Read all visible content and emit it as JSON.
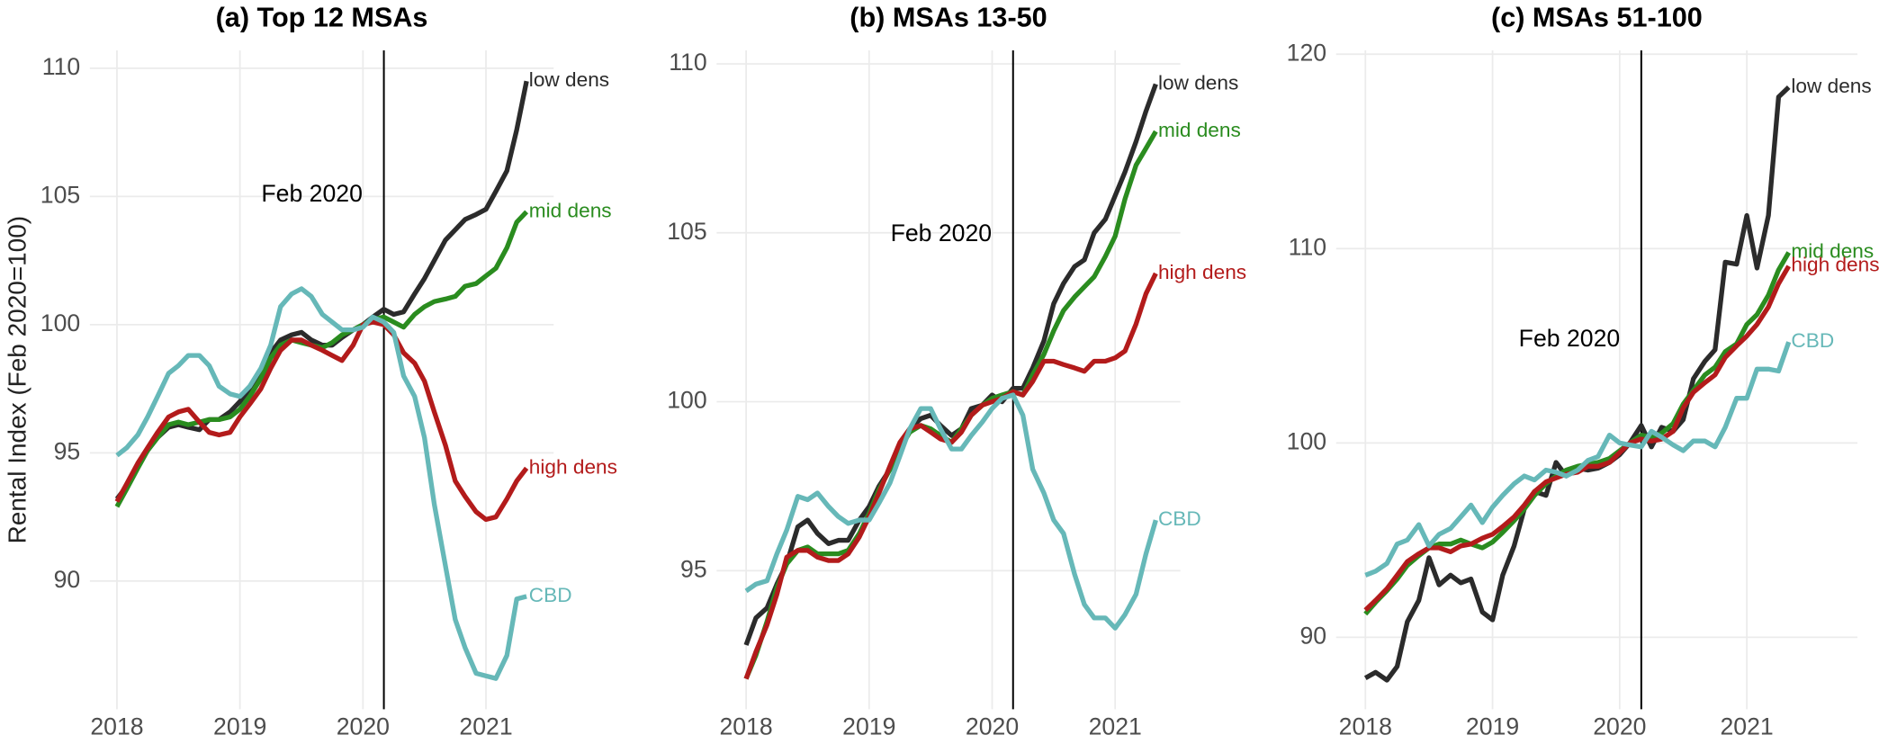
{
  "chart_data": [
    {
      "type": "line",
      "title": "(a) Top 12 MSAs",
      "ylabel": "Rental Index (Feb 2020=100)",
      "x": [
        2018,
        2018.08,
        2018.17,
        2018.25,
        2018.33,
        2018.42,
        2018.5,
        2018.58,
        2018.67,
        2018.75,
        2018.83,
        2018.92,
        2019,
        2019.08,
        2019.17,
        2019.25,
        2019.33,
        2019.42,
        2019.5,
        2019.58,
        2019.67,
        2019.75,
        2019.83,
        2019.92,
        2020,
        2020.08,
        2020.17,
        2020.25,
        2020.33,
        2020.42,
        2020.5,
        2020.58,
        2020.67,
        2020.75,
        2020.83,
        2020.92,
        2021,
        2021.08,
        2021.17,
        2021.25,
        2021.33
      ],
      "xlim": [
        2017.78,
        2021.55
      ],
      "xticks": [
        2018,
        2019,
        2020,
        2021
      ],
      "ylim": [
        85,
        110.7
      ],
      "yticks": [
        90,
        95,
        100,
        105,
        110
      ],
      "grid": true,
      "vline": 2020.17,
      "annotation": "Feb 2020",
      "series": [
        {
          "name": "low dens",
          "color": "#2b2b2b",
          "values": [
            93.2,
            93.7,
            94.5,
            95.1,
            95.6,
            96.0,
            96.1,
            96.0,
            95.9,
            96.3,
            96.3,
            96.6,
            97.0,
            97.5,
            98.2,
            98.9,
            99.4,
            99.6,
            99.7,
            99.4,
            99.2,
            99.2,
            99.5,
            99.8,
            100.0,
            100.3,
            100.6,
            100.4,
            100.5,
            101.2,
            101.8,
            102.5,
            103.3,
            103.7,
            104.1,
            104.3,
            104.5,
            105.2,
            106.0,
            107.6,
            109.5
          ]
        },
        {
          "name": "mid dens",
          "color": "#2a8c1f",
          "values": [
            92.9,
            93.6,
            94.4,
            95.1,
            95.6,
            96.1,
            96.2,
            96.1,
            96.2,
            96.3,
            96.3,
            96.4,
            96.7,
            97.2,
            97.9,
            98.7,
            99.2,
            99.4,
            99.3,
            99.2,
            99.1,
            99.3,
            99.6,
            99.8,
            100.0,
            100.2,
            100.3,
            100.1,
            99.9,
            100.4,
            100.7,
            100.9,
            101.0,
            101.1,
            101.5,
            101.6,
            101.9,
            102.2,
            103.0,
            104.0,
            104.4
          ]
        },
        {
          "name": "high dens",
          "color": "#b31b1b",
          "values": [
            93.1,
            93.8,
            94.6,
            95.2,
            95.8,
            96.4,
            96.6,
            96.7,
            96.2,
            95.8,
            95.7,
            95.8,
            96.4,
            96.9,
            97.5,
            98.3,
            99.0,
            99.4,
            99.4,
            99.2,
            99.0,
            98.8,
            98.6,
            99.2,
            100.0,
            100.1,
            100.0,
            99.6,
            98.9,
            98.5,
            97.8,
            96.6,
            95.3,
            93.9,
            93.3,
            92.7,
            92.4,
            92.5,
            93.2,
            93.9,
            94.4
          ]
        },
        {
          "name": "CBD",
          "color": "#66b8b8",
          "values": [
            94.9,
            95.2,
            95.7,
            96.4,
            97.2,
            98.1,
            98.4,
            98.8,
            98.8,
            98.4,
            97.6,
            97.3,
            97.2,
            97.6,
            98.3,
            99.2,
            100.7,
            101.2,
            101.4,
            101.1,
            100.4,
            100.1,
            99.8,
            99.8,
            99.9,
            100.3,
            100.1,
            99.7,
            98.0,
            97.2,
            95.6,
            93.0,
            90.6,
            88.5,
            87.4,
            86.4,
            86.3,
            86.2,
            87.1,
            89.3,
            89.4
          ]
        }
      ]
    },
    {
      "type": "line",
      "title": "(b) MSAs 13-50",
      "x": [
        2018,
        2018.08,
        2018.17,
        2018.25,
        2018.33,
        2018.42,
        2018.5,
        2018.58,
        2018.67,
        2018.75,
        2018.83,
        2018.92,
        2019,
        2019.08,
        2019.17,
        2019.25,
        2019.33,
        2019.42,
        2019.5,
        2019.58,
        2019.67,
        2019.75,
        2019.83,
        2019.92,
        2020,
        2020.08,
        2020.17,
        2020.25,
        2020.33,
        2020.42,
        2020.5,
        2020.58,
        2020.67,
        2020.75,
        2020.83,
        2020.92,
        2021,
        2021.08,
        2021.17,
        2021.25,
        2021.33
      ],
      "xlim": [
        2017.76,
        2021.53
      ],
      "xticks": [
        2018,
        2019,
        2020,
        2021
      ],
      "ylim": [
        90.9,
        110.4
      ],
      "yticks": [
        95,
        100,
        105,
        110
      ],
      "grid": true,
      "vline": 2020.17,
      "annotation": "Feb 2020",
      "series": [
        {
          "name": "low dens",
          "color": "#2b2b2b",
          "values": [
            92.8,
            93.6,
            93.9,
            94.6,
            95.2,
            96.3,
            96.5,
            96.1,
            95.8,
            95.9,
            95.9,
            96.5,
            96.9,
            97.5,
            98.0,
            98.6,
            99.2,
            99.5,
            99.6,
            99.3,
            99.0,
            99.2,
            99.8,
            99.9,
            100.2,
            100.0,
            100.4,
            100.4,
            101.0,
            101.8,
            102.9,
            103.5,
            104.0,
            104.2,
            105.0,
            105.4,
            106.1,
            106.8,
            107.7,
            108.6,
            109.4
          ]
        },
        {
          "name": "mid dens",
          "color": "#2a8c1f",
          "values": [
            91.8,
            92.5,
            93.5,
            94.5,
            95.2,
            95.6,
            95.7,
            95.5,
            95.5,
            95.5,
            95.6,
            96.1,
            96.7,
            97.4,
            98.0,
            98.6,
            99.1,
            99.3,
            99.2,
            99.0,
            98.8,
            99.2,
            99.6,
            99.9,
            100.1,
            100.2,
            100.3,
            100.2,
            100.8,
            101.4,
            102.1,
            102.7,
            103.1,
            103.4,
            103.7,
            104.3,
            104.9,
            106.0,
            107.0,
            107.5,
            108.0
          ]
        },
        {
          "name": "high dens",
          "color": "#b31b1b",
          "values": [
            91.8,
            92.6,
            93.4,
            94.3,
            95.4,
            95.6,
            95.6,
            95.4,
            95.3,
            95.3,
            95.5,
            96.0,
            96.6,
            97.3,
            98.1,
            98.8,
            99.2,
            99.3,
            99.1,
            98.9,
            98.8,
            99.1,
            99.6,
            99.9,
            100.0,
            100.1,
            100.3,
            100.2,
            100.6,
            101.2,
            101.2,
            101.1,
            101.0,
            100.9,
            101.2,
            101.2,
            101.3,
            101.5,
            102.3,
            103.2,
            103.8
          ]
        },
        {
          "name": "CBD",
          "color": "#66b8b8",
          "values": [
            94.4,
            94.6,
            94.7,
            95.5,
            96.2,
            97.2,
            97.1,
            97.3,
            96.9,
            96.6,
            96.4,
            96.5,
            96.5,
            97.0,
            97.6,
            98.4,
            99.2,
            99.8,
            99.8,
            99.2,
            98.6,
            98.6,
            99.0,
            99.4,
            99.8,
            100.1,
            100.2,
            99.6,
            98.0,
            97.3,
            96.5,
            96.1,
            94.9,
            94.0,
            93.6,
            93.6,
            93.3,
            93.7,
            94.3,
            95.5,
            96.5
          ]
        }
      ]
    },
    {
      "type": "line",
      "title": "(c) MSAs 51-100",
      "x": [
        2018,
        2018.08,
        2018.17,
        2018.25,
        2018.33,
        2018.42,
        2018.5,
        2018.58,
        2018.67,
        2018.75,
        2018.83,
        2018.92,
        2019,
        2019.08,
        2019.17,
        2019.25,
        2019.33,
        2019.42,
        2019.5,
        2019.58,
        2019.67,
        2019.75,
        2019.83,
        2019.92,
        2020,
        2020.08,
        2020.17,
        2020.25,
        2020.33,
        2020.42,
        2020.5,
        2020.58,
        2020.67,
        2020.75,
        2020.83,
        2020.92,
        2021,
        2021.08,
        2021.17,
        2021.25,
        2021.33
      ],
      "xlim": [
        2017.77,
        2021.87
      ],
      "xticks": [
        2018,
        2019,
        2020,
        2021
      ],
      "ylim": [
        86.3,
        120.2
      ],
      "yticks": [
        90,
        100,
        110,
        120
      ],
      "grid": true,
      "vline": 2020.17,
      "annotation": "Feb 2020",
      "series": [
        {
          "name": "low dens",
          "color": "#2b2b2b",
          "values": [
            87.9,
            88.2,
            87.8,
            88.5,
            90.8,
            91.9,
            94.1,
            92.7,
            93.2,
            92.8,
            93.0,
            91.3,
            90.9,
            93.2,
            94.7,
            96.6,
            97.5,
            97.3,
            99.0,
            98.3,
            98.7,
            98.6,
            98.7,
            99.0,
            99.4,
            100.0,
            100.9,
            99.8,
            100.8,
            100.6,
            101.2,
            103.3,
            104.2,
            104.8,
            109.3,
            109.2,
            111.7,
            109.0,
            111.7,
            117.8,
            118.3
          ]
        },
        {
          "name": "mid dens",
          "color": "#2a8c1f",
          "values": [
            91.2,
            91.8,
            92.4,
            93.0,
            93.7,
            94.2,
            94.6,
            94.8,
            94.8,
            95.0,
            94.8,
            94.6,
            94.9,
            95.4,
            96.0,
            96.6,
            97.3,
            97.9,
            98.3,
            98.6,
            98.8,
            98.9,
            99.0,
            99.2,
            99.6,
            100.0,
            100.4,
            100.3,
            100.5,
            101.0,
            102.0,
            102.7,
            103.5,
            103.9,
            104.7,
            105.1,
            106.1,
            106.6,
            107.6,
            108.9,
            109.8
          ]
        },
        {
          "name": "high dens",
          "color": "#b31b1b",
          "values": [
            91.4,
            91.9,
            92.5,
            93.2,
            93.9,
            94.3,
            94.6,
            94.6,
            94.4,
            94.7,
            94.8,
            95.1,
            95.3,
            95.7,
            96.2,
            96.8,
            97.5,
            98.0,
            98.2,
            98.4,
            98.5,
            98.8,
            98.8,
            99.0,
            99.5,
            100.0,
            100.2,
            100.1,
            100.2,
            100.6,
            101.8,
            102.6,
            103.1,
            103.5,
            104.4,
            105.0,
            105.5,
            106.1,
            107.0,
            108.2,
            109.1
          ]
        },
        {
          "name": "CBD",
          "color": "#66b8b8",
          "values": [
            93.2,
            93.4,
            93.8,
            94.8,
            95.0,
            95.8,
            94.7,
            95.3,
            95.6,
            96.2,
            96.8,
            95.9,
            96.7,
            97.3,
            97.9,
            98.3,
            98.1,
            98.6,
            98.5,
            98.3,
            98.6,
            99.1,
            99.3,
            100.4,
            100.0,
            99.9,
            99.8,
            100.6,
            100.3,
            99.9,
            99.6,
            100.1,
            100.1,
            99.8,
            100.8,
            102.3,
            102.3,
            103.8,
            103.8,
            103.7,
            105.2
          ]
        }
      ]
    }
  ]
}
